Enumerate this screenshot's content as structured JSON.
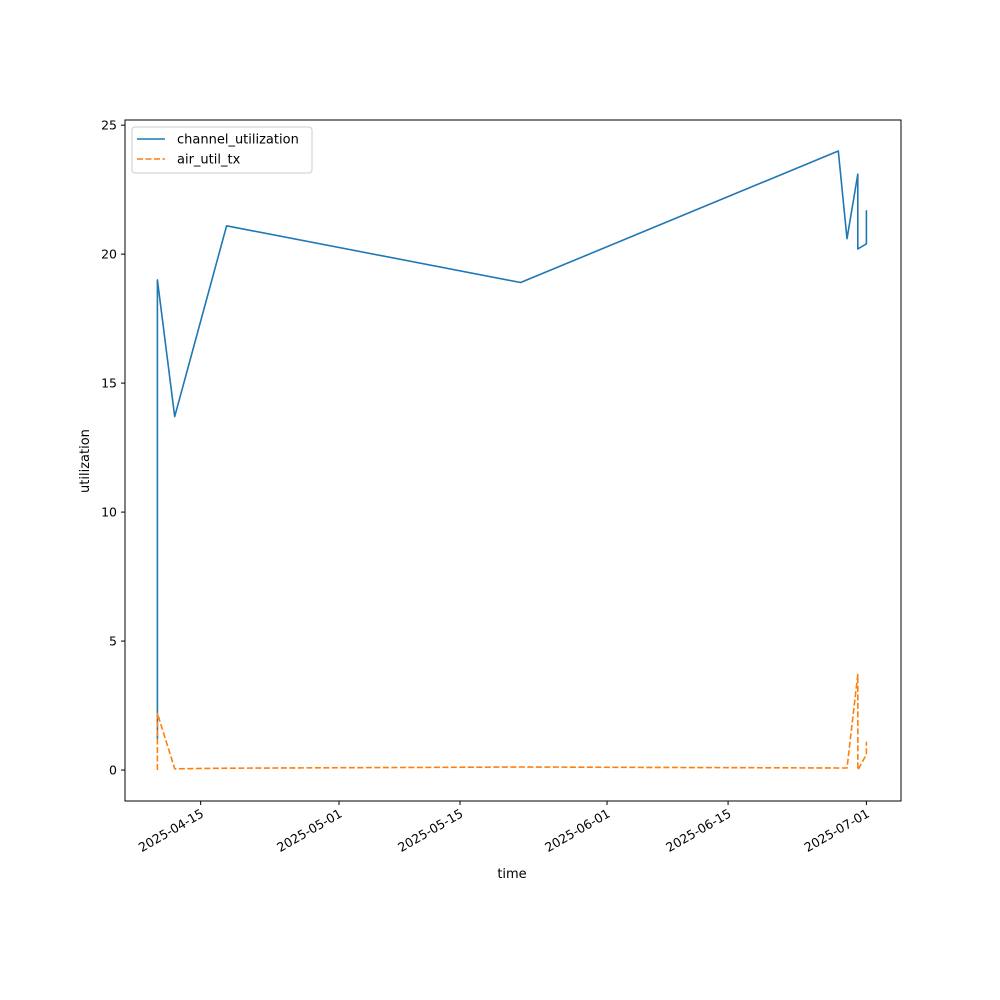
{
  "chart_data": {
    "type": "line",
    "title": "",
    "xlabel": "time",
    "ylabel": "utilization",
    "x_ticks": [
      "2025-04-15",
      "2025-05-01",
      "2025-05-15",
      "2025-06-01",
      "2025-06-15",
      "2025-07-01"
    ],
    "y_ticks": [
      0,
      5,
      10,
      15,
      20,
      25
    ],
    "xlim": [
      "2025-04-06T06:00",
      "2025-07-05T00:00"
    ],
    "ylim": [
      -1.2,
      25.2
    ],
    "grid": false,
    "legend_position": "top-left",
    "series": [
      {
        "name": "channel_utilization",
        "color": "#1f77b4",
        "dash": "solid",
        "points": [
          {
            "x": "2025-04-10T00:00",
            "y": 1.2
          },
          {
            "x": "2025-04-10T00:00",
            "y": 19.0
          },
          {
            "x": "2025-04-12T00:00",
            "y": 13.7
          },
          {
            "x": "2025-04-18T00:00",
            "y": 21.1
          },
          {
            "x": "2025-05-22T00:00",
            "y": 18.9
          },
          {
            "x": "2025-06-27T18:00",
            "y": 24.0
          },
          {
            "x": "2025-06-28T18:00",
            "y": 20.6
          },
          {
            "x": "2025-06-30T00:00",
            "y": 23.1
          },
          {
            "x": "2025-06-30T00:00",
            "y": 20.2
          },
          {
            "x": "2025-07-01T00:00",
            "y": 20.4
          },
          {
            "x": "2025-07-01T00:00",
            "y": 21.7
          }
        ]
      },
      {
        "name": "air_util_tx",
        "color": "#ff7f0e",
        "dash": "dashed",
        "points": [
          {
            "x": "2025-04-10T00:00",
            "y": 0.0
          },
          {
            "x": "2025-04-10T00:00",
            "y": 2.2
          },
          {
            "x": "2025-04-12T00:00",
            "y": 0.05
          },
          {
            "x": "2025-04-18T00:00",
            "y": 0.07
          },
          {
            "x": "2025-05-22T00:00",
            "y": 0.12
          },
          {
            "x": "2025-06-27T18:00",
            "y": 0.08
          },
          {
            "x": "2025-06-28T18:00",
            "y": 0.08
          },
          {
            "x": "2025-06-30T00:00",
            "y": 3.7
          },
          {
            "x": "2025-06-30T00:00",
            "y": 0.0
          },
          {
            "x": "2025-07-01T00:00",
            "y": 0.6
          },
          {
            "x": "2025-07-01T00:00",
            "y": 1.1
          }
        ]
      }
    ]
  }
}
